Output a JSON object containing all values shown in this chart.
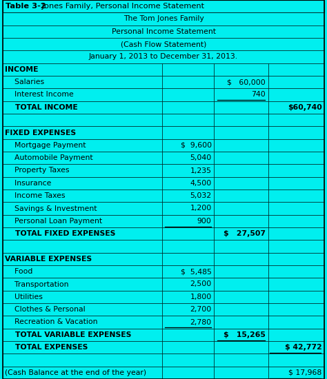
{
  "title_bold": "Table 3-2",
  "title_rest": " Jones Family, Personal Income Statement",
  "header_lines": [
    "The Tom Jones Family",
    "Personal Income Statement",
    "(Cash Flow Statement)",
    "January 1, 2013 to December 31, 2013."
  ],
  "rows": [
    {
      "label": "INCOME",
      "col1": "",
      "col2": "",
      "col3": "",
      "bold": true,
      "indent": 0,
      "ul1": false,
      "ul2": false,
      "ul3": false
    },
    {
      "label": "    Salaries",
      "col1": "",
      "col2": "$   60,000",
      "col3": "",
      "bold": false,
      "indent": 1,
      "ul1": false,
      "ul2": false,
      "ul3": false
    },
    {
      "label": "    Interest Income",
      "col1": "",
      "col2": "740",
      "col3": "",
      "bold": false,
      "indent": 1,
      "ul1": false,
      "ul2": true,
      "ul3": false
    },
    {
      "label": "    TOTAL INCOME",
      "col1": "",
      "col2": "",
      "col3": "$60,740",
      "bold": true,
      "indent": 1,
      "ul1": false,
      "ul2": false,
      "ul3": false
    },
    {
      "label": "",
      "col1": "",
      "col2": "",
      "col3": "",
      "bold": false,
      "indent": 0,
      "ul1": false,
      "ul2": false,
      "ul3": false
    },
    {
      "label": "FIXED EXPENSES",
      "col1": "",
      "col2": "",
      "col3": "",
      "bold": true,
      "indent": 0,
      "ul1": false,
      "ul2": false,
      "ul3": false
    },
    {
      "label": "    Mortgage Payment",
      "col1": "$  9,600",
      "col2": "",
      "col3": "",
      "bold": false,
      "indent": 1,
      "ul1": false,
      "ul2": false,
      "ul3": false
    },
    {
      "label": "    Automobile Payment",
      "col1": "5,040",
      "col2": "",
      "col3": "",
      "bold": false,
      "indent": 1,
      "ul1": false,
      "ul2": false,
      "ul3": false
    },
    {
      "label": "    Property Taxes",
      "col1": "1,235",
      "col2": "",
      "col3": "",
      "bold": false,
      "indent": 1,
      "ul1": false,
      "ul2": false,
      "ul3": false
    },
    {
      "label": "    Insurance",
      "col1": "4,500",
      "col2": "",
      "col3": "",
      "bold": false,
      "indent": 1,
      "ul1": false,
      "ul2": false,
      "ul3": false
    },
    {
      "label": "    Income Taxes",
      "col1": "5,032",
      "col2": "",
      "col3": "",
      "bold": false,
      "indent": 1,
      "ul1": false,
      "ul2": false,
      "ul3": false
    },
    {
      "label": "    Savings & Investment",
      "col1": "1,200",
      "col2": "",
      "col3": "",
      "bold": false,
      "indent": 1,
      "ul1": false,
      "ul2": false,
      "ul3": false
    },
    {
      "label": "    Personal Loan Payment",
      "col1": "900",
      "col2": "",
      "col3": "",
      "bold": false,
      "indent": 1,
      "ul1": true,
      "ul2": false,
      "ul3": false
    },
    {
      "label": "    TOTAL FIXED EXPENSES",
      "col1": "",
      "col2": "$   27,507",
      "col3": "",
      "bold": true,
      "indent": 1,
      "ul1": false,
      "ul2": false,
      "ul3": false
    },
    {
      "label": "",
      "col1": "",
      "col2": "",
      "col3": "",
      "bold": false,
      "indent": 0,
      "ul1": false,
      "ul2": false,
      "ul3": false
    },
    {
      "label": "VARIABLE EXPENSES",
      "col1": "",
      "col2": "",
      "col3": "",
      "bold": true,
      "indent": 0,
      "ul1": false,
      "ul2": false,
      "ul3": false
    },
    {
      "label": "    Food",
      "col1": "$  5,485",
      "col2": "",
      "col3": "",
      "bold": false,
      "indent": 1,
      "ul1": false,
      "ul2": false,
      "ul3": false
    },
    {
      "label": "    Transportation",
      "col1": "2,500",
      "col2": "",
      "col3": "",
      "bold": false,
      "indent": 1,
      "ul1": false,
      "ul2": false,
      "ul3": false
    },
    {
      "label": "    Utilities",
      "col1": "1,800",
      "col2": "",
      "col3": "",
      "bold": false,
      "indent": 1,
      "ul1": false,
      "ul2": false,
      "ul3": false
    },
    {
      "label": "    Clothes & Personal",
      "col1": "2,700",
      "col2": "",
      "col3": "",
      "bold": false,
      "indent": 1,
      "ul1": false,
      "ul2": false,
      "ul3": false
    },
    {
      "label": "    Recreation & Vacation",
      "col1": "2,780",
      "col2": "",
      "col3": "",
      "bold": false,
      "indent": 1,
      "ul1": true,
      "ul2": false,
      "ul3": false
    },
    {
      "label": "    TOTAL VARIABLE EXPENSES",
      "col1": "",
      "col2": "$   15,265",
      "col3": "",
      "bold": true,
      "indent": 1,
      "ul1": false,
      "ul2": true,
      "ul3": false
    },
    {
      "label": "    TOTAL EXPENSES",
      "col1": "",
      "col2": "",
      "col3": "$ 42,772",
      "bold": true,
      "indent": 1,
      "ul1": false,
      "ul2": false,
      "ul3": true
    },
    {
      "label": "",
      "col1": "",
      "col2": "",
      "col3": "",
      "bold": false,
      "indent": 0,
      "ul1": false,
      "ul2": false,
      "ul3": false
    },
    {
      "label": "(Cash Balance at the end of the year)",
      "col1": "",
      "col2": "",
      "col3": "$ 17,968",
      "bold": false,
      "indent": 0,
      "ul1": false,
      "ul2": false,
      "ul3": true
    }
  ],
  "bg_color": "#00EFEF",
  "text_color": "#000000",
  "font_size": 7.8,
  "title_font_size": 8.2,
  "col_bounds": [
    0.008,
    0.495,
    0.655,
    0.82,
    0.992
  ],
  "n_header_rows": 5,
  "total_rows": 30
}
